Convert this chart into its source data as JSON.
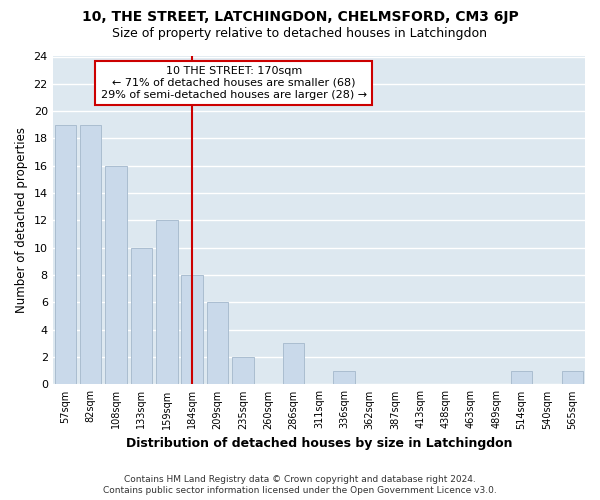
{
  "title": "10, THE STREET, LATCHINGDON, CHELMSFORD, CM3 6JP",
  "subtitle": "Size of property relative to detached houses in Latchingdon",
  "xlabel": "Distribution of detached houses by size in Latchingdon",
  "ylabel": "Number of detached properties",
  "footnote1": "Contains HM Land Registry data © Crown copyright and database right 2024.",
  "footnote2": "Contains public sector information licensed under the Open Government Licence v3.0.",
  "categories": [
    "57sqm",
    "82sqm",
    "108sqm",
    "133sqm",
    "159sqm",
    "184sqm",
    "209sqm",
    "235sqm",
    "260sqm",
    "286sqm",
    "311sqm",
    "336sqm",
    "362sqm",
    "387sqm",
    "413sqm",
    "438sqm",
    "463sqm",
    "489sqm",
    "514sqm",
    "540sqm",
    "565sqm"
  ],
  "values": [
    19,
    19,
    16,
    10,
    12,
    8,
    6,
    2,
    0,
    3,
    0,
    1,
    0,
    0,
    0,
    0,
    0,
    0,
    1,
    0,
    1
  ],
  "bar_color": "#c9d9ea",
  "bar_edge_color": "#aabdd0",
  "background_color": "#ffffff",
  "plot_bg_color": "#dde8f0",
  "grid_color": "#ffffff",
  "red_line_x": 5,
  "property_label": "10 THE STREET: 170sqm",
  "annotation_line1": "← 71% of detached houses are smaller (68)",
  "annotation_line2": "29% of semi-detached houses are larger (28) →",
  "annotation_box_color": "#ffffff",
  "annotation_box_edge_color": "#cc0000",
  "red_line_color": "#cc0000",
  "ylim": [
    0,
    24
  ],
  "yticks": [
    0,
    2,
    4,
    6,
    8,
    10,
    12,
    14,
    16,
    18,
    20,
    22,
    24
  ]
}
